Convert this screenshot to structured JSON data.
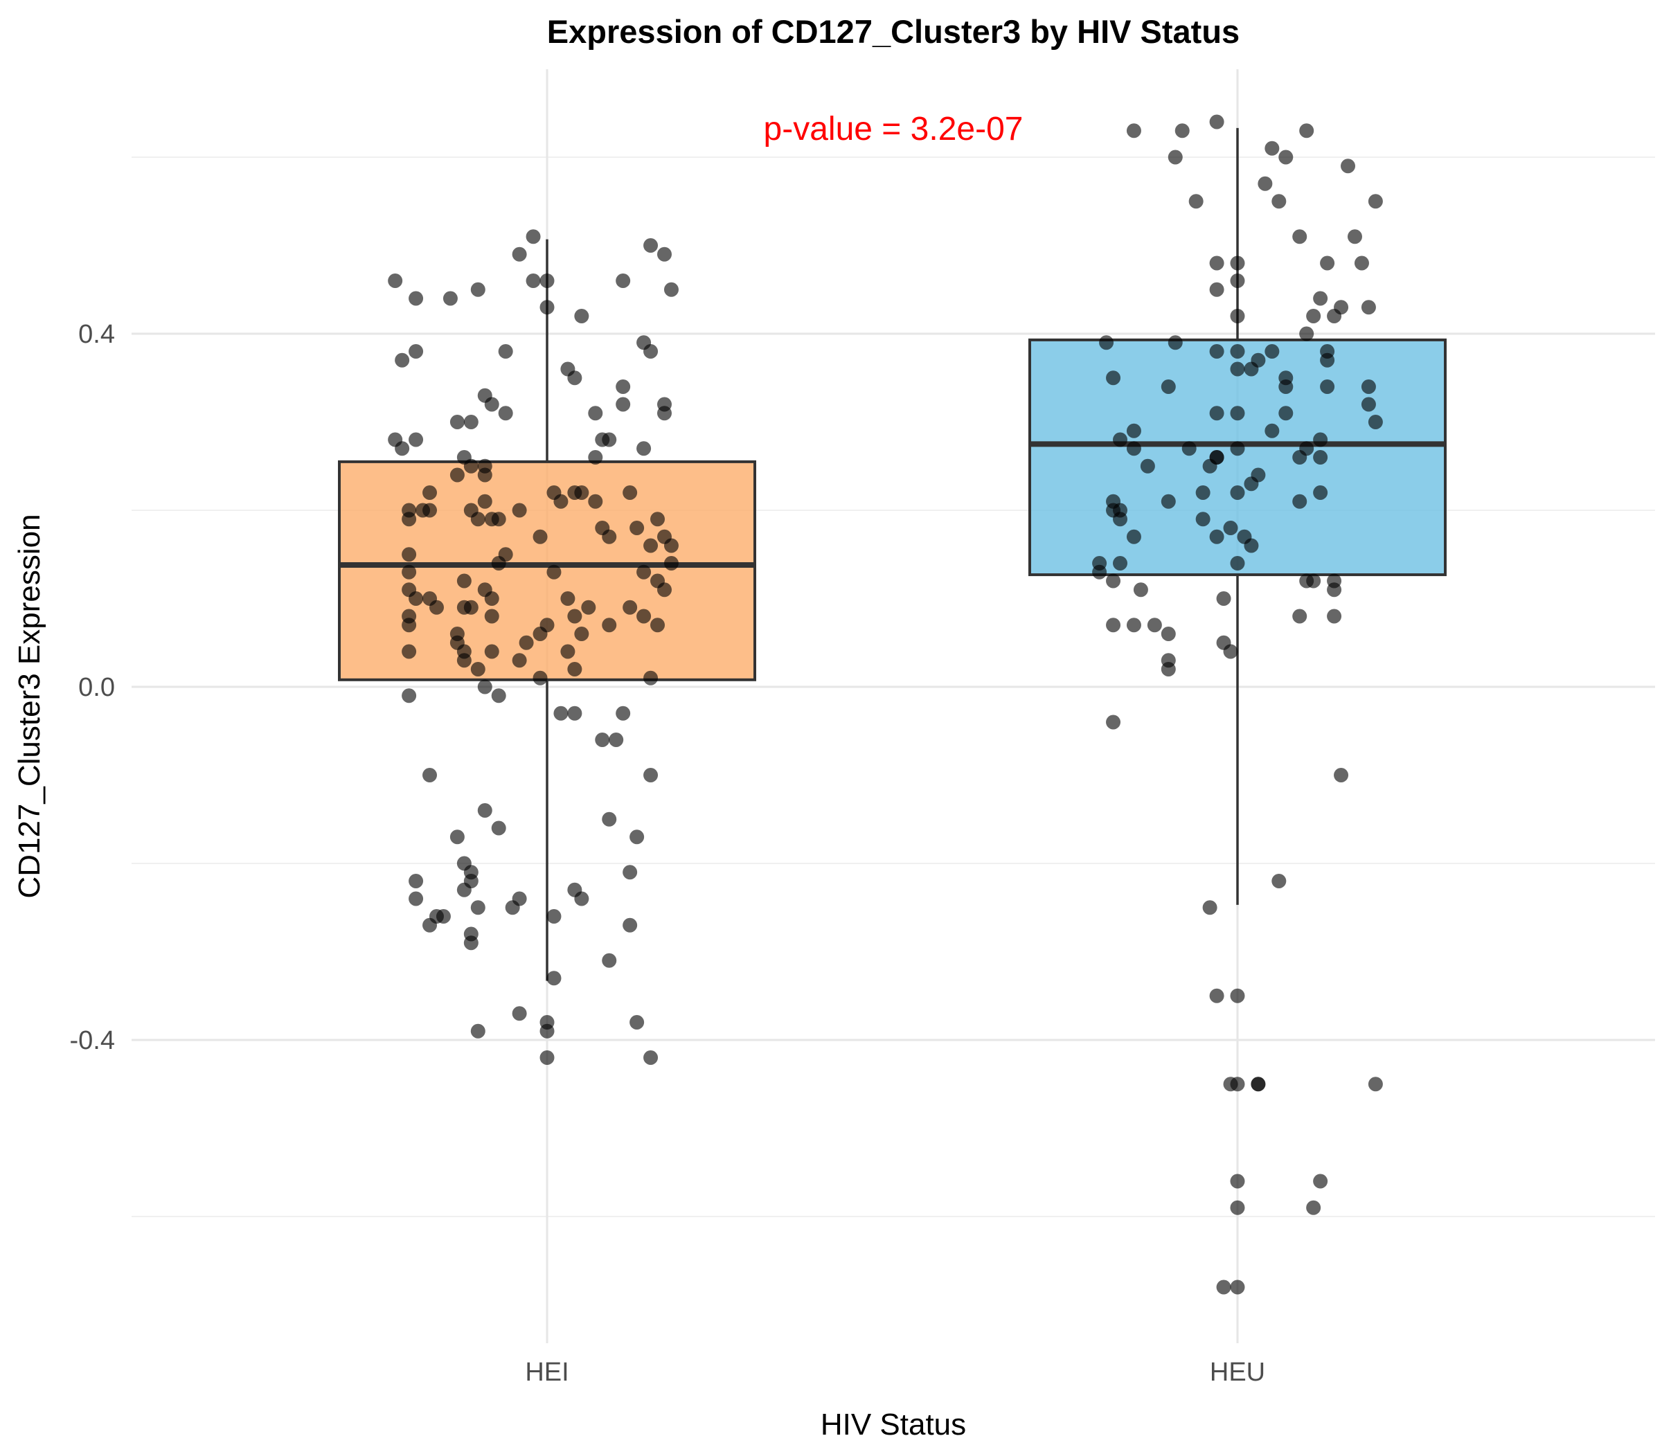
{
  "chart_data": {
    "type": "box",
    "title": "Expression of CD127_Cluster3 by HIV Status",
    "xlabel": "HIV Status",
    "ylabel": "CD127_Cluster3 Expression",
    "ylim": [
      -0.75,
      0.73
    ],
    "y_ticks": [
      -0.4,
      0.0,
      0.4
    ],
    "y_tick_labels": [
      "-0.4",
      "0.0",
      "0.4"
    ],
    "grid": true,
    "annotation": {
      "text": "p-value = 3.2e-07",
      "color": "#ff0000"
    },
    "categories": [
      "HEI",
      "HEU"
    ],
    "series": [
      {
        "category": "HEI",
        "fill": "#fdae6b",
        "box": {
          "q1": 0.008,
          "median": 0.138,
          "q3": 0.255,
          "whisker_low": -0.333,
          "whisker_high": 0.507
        },
        "points": [
          [
            -0.22,
            0.46
          ],
          [
            -0.19,
            0.44
          ],
          [
            -0.14,
            0.44
          ],
          [
            -0.1,
            0.45
          ],
          [
            -0.04,
            0.49
          ],
          [
            -0.02,
            0.51
          ],
          [
            -0.02,
            0.46
          ],
          [
            0.0,
            0.46
          ],
          [
            0.0,
            0.43
          ],
          [
            0.05,
            0.42
          ],
          [
            0.11,
            0.46
          ],
          [
            0.15,
            0.5
          ],
          [
            0.17,
            0.49
          ],
          [
            0.18,
            0.45
          ],
          [
            0.14,
            0.39
          ],
          [
            0.15,
            0.38
          ],
          [
            -0.06,
            0.38
          ],
          [
            -0.19,
            0.38
          ],
          [
            -0.21,
            0.37
          ],
          [
            -0.09,
            0.33
          ],
          [
            -0.08,
            0.32
          ],
          [
            -0.06,
            0.31
          ],
          [
            -0.13,
            0.3
          ],
          [
            -0.11,
            0.3
          ],
          [
            -0.19,
            0.28
          ],
          [
            -0.22,
            0.28
          ],
          [
            -0.21,
            0.27
          ],
          [
            0.03,
            0.36
          ],
          [
            0.04,
            0.35
          ],
          [
            0.07,
            0.31
          ],
          [
            0.11,
            0.34
          ],
          [
            0.11,
            0.32
          ],
          [
            0.17,
            0.32
          ],
          [
            0.17,
            0.31
          ],
          [
            0.09,
            0.28
          ],
          [
            0.14,
            0.27
          ],
          [
            0.07,
            0.26
          ],
          [
            0.08,
            0.28
          ],
          [
            -0.12,
            0.26
          ],
          [
            -0.09,
            0.25
          ],
          [
            -0.11,
            0.25
          ],
          [
            -0.09,
            0.24
          ],
          [
            -0.13,
            0.24
          ],
          [
            -0.17,
            0.22
          ],
          [
            -0.09,
            0.21
          ],
          [
            -0.11,
            0.2
          ],
          [
            -0.2,
            0.2
          ],
          [
            -0.18,
            0.2
          ],
          [
            -0.17,
            0.2
          ],
          [
            -0.2,
            0.19
          ],
          [
            -0.1,
            0.19
          ],
          [
            -0.08,
            0.19
          ],
          [
            -0.07,
            0.19
          ],
          [
            -0.04,
            0.2
          ],
          [
            -0.01,
            0.17
          ],
          [
            0.01,
            0.22
          ],
          [
            0.02,
            0.21
          ],
          [
            0.04,
            0.22
          ],
          [
            0.05,
            0.22
          ],
          [
            0.07,
            0.21
          ],
          [
            0.08,
            0.18
          ],
          [
            0.09,
            0.17
          ],
          [
            0.12,
            0.22
          ],
          [
            0.13,
            0.18
          ],
          [
            0.15,
            0.16
          ],
          [
            0.16,
            0.19
          ],
          [
            0.17,
            0.17
          ],
          [
            0.18,
            0.16
          ],
          [
            0.18,
            0.14
          ],
          [
            0.14,
            0.13
          ],
          [
            0.16,
            0.12
          ],
          [
            0.17,
            0.11
          ],
          [
            -0.2,
            0.15
          ],
          [
            -0.2,
            0.13
          ],
          [
            -0.2,
            0.11
          ],
          [
            -0.19,
            0.1
          ],
          [
            -0.17,
            0.1
          ],
          [
            -0.16,
            0.09
          ],
          [
            -0.2,
            0.08
          ],
          [
            -0.2,
            0.07
          ],
          [
            -0.12,
            0.12
          ],
          [
            -0.09,
            0.11
          ],
          [
            -0.08,
            0.1
          ],
          [
            -0.07,
            0.14
          ],
          [
            -0.06,
            0.15
          ],
          [
            -0.11,
            0.09
          ],
          [
            -0.12,
            0.09
          ],
          [
            -0.08,
            0.08
          ],
          [
            0.01,
            0.13
          ],
          [
            0.03,
            0.1
          ],
          [
            0.04,
            0.08
          ],
          [
            0.06,
            0.09
          ],
          [
            0.05,
            0.06
          ],
          [
            0.0,
            0.07
          ],
          [
            -0.01,
            0.06
          ],
          [
            0.09,
            0.07
          ],
          [
            0.12,
            0.09
          ],
          [
            0.14,
            0.08
          ],
          [
            0.16,
            0.07
          ],
          [
            -0.13,
            0.06
          ],
          [
            -0.13,
            0.05
          ],
          [
            -0.2,
            0.04
          ],
          [
            -0.12,
            0.04
          ],
          [
            -0.08,
            0.04
          ],
          [
            -0.03,
            0.05
          ],
          [
            0.03,
            0.04
          ],
          [
            -0.12,
            0.03
          ],
          [
            -0.1,
            0.02
          ],
          [
            -0.04,
            0.03
          ],
          [
            -0.01,
            0.01
          ],
          [
            0.04,
            0.02
          ],
          [
            0.15,
            0.01
          ],
          [
            -0.09,
            0.0
          ],
          [
            -0.07,
            -0.01
          ],
          [
            -0.2,
            -0.01
          ],
          [
            0.02,
            -0.03
          ],
          [
            0.04,
            -0.03
          ],
          [
            0.11,
            -0.03
          ],
          [
            0.08,
            -0.06
          ],
          [
            0.1,
            -0.06
          ],
          [
            -0.17,
            -0.1
          ],
          [
            0.15,
            -0.1
          ],
          [
            -0.09,
            -0.14
          ],
          [
            -0.07,
            -0.16
          ],
          [
            -0.13,
            -0.17
          ],
          [
            0.09,
            -0.15
          ],
          [
            0.13,
            -0.17
          ],
          [
            -0.12,
            -0.2
          ],
          [
            -0.11,
            -0.21
          ],
          [
            -0.19,
            -0.22
          ],
          [
            -0.11,
            -0.22
          ],
          [
            -0.12,
            -0.23
          ],
          [
            0.04,
            -0.23
          ],
          [
            0.05,
            -0.24
          ],
          [
            -0.04,
            -0.24
          ],
          [
            0.12,
            -0.21
          ],
          [
            -0.19,
            -0.24
          ],
          [
            -0.1,
            -0.25
          ],
          [
            -0.05,
            -0.25
          ],
          [
            -0.15,
            -0.26
          ],
          [
            -0.17,
            -0.27
          ],
          [
            -0.16,
            -0.26
          ],
          [
            0.12,
            -0.27
          ],
          [
            0.01,
            -0.26
          ],
          [
            -0.11,
            -0.28
          ],
          [
            -0.11,
            -0.29
          ],
          [
            0.09,
            -0.31
          ],
          [
            0.01,
            -0.33
          ],
          [
            -0.04,
            -0.37
          ],
          [
            0.0,
            -0.38
          ],
          [
            -0.1,
            -0.39
          ],
          [
            0.0,
            -0.39
          ],
          [
            0.13,
            -0.38
          ],
          [
            0.15,
            -0.42
          ],
          [
            0.0,
            -0.42
          ]
        ]
      },
      {
        "category": "HEU",
        "fill": "#6ec1e4",
        "box": {
          "q1": 0.127,
          "median": 0.275,
          "q3": 0.393,
          "whisker_low": -0.247,
          "whisker_high": 0.633
        },
        "points": [
          [
            -0.15,
            0.63
          ],
          [
            -0.09,
            0.6
          ],
          [
            -0.08,
            0.63
          ],
          [
            -0.03,
            0.64
          ],
          [
            0.05,
            0.61
          ],
          [
            0.07,
            0.6
          ],
          [
            0.1,
            0.63
          ],
          [
            0.16,
            0.59
          ],
          [
            0.2,
            0.55
          ],
          [
            -0.06,
            0.55
          ],
          [
            0.04,
            0.57
          ],
          [
            0.06,
            0.55
          ],
          [
            0.09,
            0.51
          ],
          [
            0.17,
            0.51
          ],
          [
            0.13,
            0.48
          ],
          [
            0.18,
            0.48
          ],
          [
            -0.03,
            0.48
          ],
          [
            0.0,
            0.48
          ],
          [
            -0.03,
            0.45
          ],
          [
            0.0,
            0.46
          ],
          [
            0.12,
            0.44
          ],
          [
            0.15,
            0.43
          ],
          [
            0.11,
            0.42
          ],
          [
            0.14,
            0.42
          ],
          [
            0.19,
            0.43
          ],
          [
            0.1,
            0.4
          ],
          [
            0.0,
            0.42
          ],
          [
            -0.19,
            0.39
          ],
          [
            -0.09,
            0.39
          ],
          [
            -0.03,
            0.38
          ],
          [
            0.0,
            0.38
          ],
          [
            0.05,
            0.38
          ],
          [
            0.13,
            0.38
          ],
          [
            0.13,
            0.37
          ],
          [
            0.02,
            0.36
          ],
          [
            0.03,
            0.37
          ],
          [
            0.0,
            0.36
          ],
          [
            0.07,
            0.35
          ],
          [
            0.07,
            0.34
          ],
          [
            0.13,
            0.34
          ],
          [
            0.19,
            0.34
          ],
          [
            -0.18,
            0.35
          ],
          [
            -0.1,
            0.34
          ],
          [
            0.0,
            0.31
          ],
          [
            -0.03,
            0.31
          ],
          [
            0.07,
            0.31
          ],
          [
            0.19,
            0.32
          ],
          [
            0.2,
            0.3
          ],
          [
            -0.15,
            0.29
          ],
          [
            -0.17,
            0.28
          ],
          [
            -0.07,
            0.27
          ],
          [
            -0.03,
            0.26
          ],
          [
            -0.03,
            0.26
          ],
          [
            0.0,
            0.27
          ],
          [
            0.05,
            0.29
          ],
          [
            0.1,
            0.27
          ],
          [
            0.12,
            0.28
          ],
          [
            0.09,
            0.26
          ],
          [
            0.12,
            0.26
          ],
          [
            -0.15,
            0.27
          ],
          [
            -0.13,
            0.25
          ],
          [
            -0.04,
            0.25
          ],
          [
            0.03,
            0.24
          ],
          [
            0.02,
            0.23
          ],
          [
            0.0,
            0.22
          ],
          [
            0.12,
            0.22
          ],
          [
            0.09,
            0.21
          ],
          [
            -0.05,
            0.22
          ],
          [
            -0.1,
            0.21
          ],
          [
            -0.18,
            0.21
          ],
          [
            -0.17,
            0.2
          ],
          [
            -0.17,
            0.19
          ],
          [
            -0.05,
            0.19
          ],
          [
            -0.18,
            0.2
          ],
          [
            -0.15,
            0.17
          ],
          [
            -0.03,
            0.17
          ],
          [
            -0.01,
            0.18
          ],
          [
            0.01,
            0.17
          ],
          [
            0.02,
            0.16
          ],
          [
            -0.2,
            0.14
          ],
          [
            -0.2,
            0.13
          ],
          [
            -0.18,
            0.12
          ],
          [
            -0.17,
            0.14
          ],
          [
            -0.14,
            0.11
          ],
          [
            0.0,
            0.14
          ],
          [
            0.1,
            0.12
          ],
          [
            0.11,
            0.12
          ],
          [
            0.14,
            0.11
          ],
          [
            0.14,
            0.12
          ],
          [
            -0.02,
            0.1
          ],
          [
            -0.12,
            0.07
          ],
          [
            -0.18,
            0.07
          ],
          [
            -0.15,
            0.07
          ],
          [
            -0.1,
            0.06
          ],
          [
            -0.02,
            0.05
          ],
          [
            -0.01,
            0.04
          ],
          [
            -0.1,
            0.03
          ],
          [
            0.09,
            0.08
          ],
          [
            0.14,
            0.08
          ],
          [
            -0.1,
            0.02
          ],
          [
            -0.18,
            -0.04
          ],
          [
            0.15,
            -0.1
          ],
          [
            0.06,
            -0.22
          ],
          [
            -0.04,
            -0.25
          ],
          [
            -0.03,
            -0.35
          ],
          [
            0.0,
            -0.35
          ],
          [
            -0.01,
            -0.45
          ],
          [
            0.03,
            -0.45
          ],
          [
            0.03,
            -0.45
          ],
          [
            0.0,
            -0.45
          ],
          [
            0.2,
            -0.45
          ],
          [
            0.0,
            -0.56
          ],
          [
            0.12,
            -0.56
          ],
          [
            0.0,
            -0.59
          ],
          [
            0.11,
            -0.59
          ],
          [
            -0.02,
            -0.68
          ],
          [
            0.0,
            -0.68
          ]
        ]
      }
    ]
  }
}
